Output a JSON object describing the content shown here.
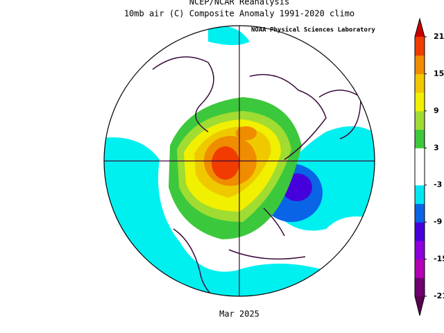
{
  "header": {
    "title": "NCEP/NCAR Reanalysis",
    "subtitle": "10mb air (C) Composite Anomaly 1991-2020 climo",
    "credit": "NOAA Physical Sciences Laboratory",
    "date": "Mar 2025"
  },
  "colorbar": {
    "lim": [
      -21,
      21
    ],
    "ticks": [
      21,
      15,
      9,
      3,
      -3,
      -9,
      -15,
      -21
    ],
    "colors": [
      "#6e0070",
      "#b400b4",
      "#8c00dc",
      "#4600dc",
      "#0a64e6",
      "#00e6f0",
      "#ffffff",
      "#ffffff",
      "#3cc83c",
      "#a0dc32",
      "#f0f000",
      "#f0c800",
      "#f08c00",
      "#f03c00"
    ],
    "under": "#5a0050",
    "over": "#c80000"
  }
}
